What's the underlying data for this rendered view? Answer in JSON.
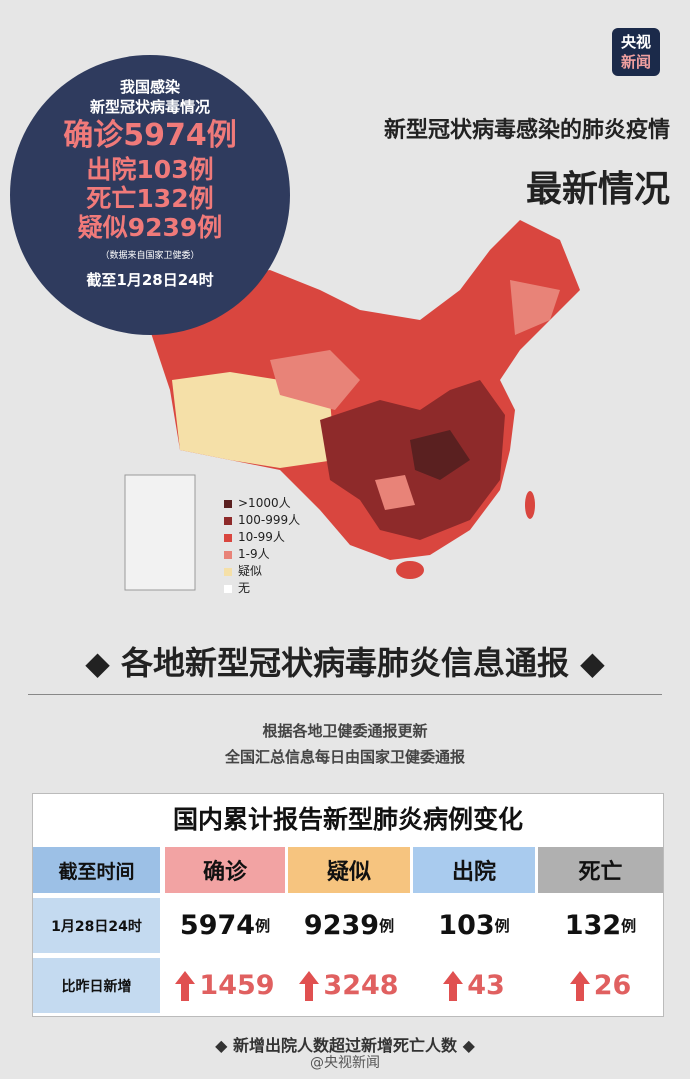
{
  "logo": [
    "央视",
    "新闻"
  ],
  "circle": {
    "title": [
      "我国感染",
      "新型冠状病毒情况"
    ],
    "confirmed": "确诊5974例",
    "discharged": "出院103例",
    "deaths": "死亡132例",
    "suspected": "疑似9239例",
    "source": "（数据来自国家卫健委）",
    "as_of": "截至1月28日24时"
  },
  "headline": [
    "新型冠状病毒感染的肺炎疫情",
    "最新情况"
  ],
  "legend": [
    {
      "label": ">1000人",
      "color": "#5a2020"
    },
    {
      "label": "100-999人",
      "color": "#8e2a2a"
    },
    {
      "label": "10-99人",
      "color": "#d9463f"
    },
    {
      "label": "1-9人",
      "color": "#e88378"
    },
    {
      "label": "疑似",
      "color": "#f5e0a8"
    },
    {
      "label": "无",
      "color": "#ffffff"
    }
  ],
  "section_title": "各地新型冠状病毒肺炎信息通报",
  "notes": [
    "根据各地卫健委通报更新",
    "全国汇总信息每日由国家卫健委通报"
  ],
  "table": {
    "title": "国内累计报告新型肺炎病例变化",
    "unit": "例",
    "header": [
      "截至时间",
      "确诊",
      "疑似",
      "出院",
      "死亡"
    ],
    "rows": [
      [
        "1月28日24时",
        5974,
        9239,
        103,
        132
      ],
      [
        "比昨日新增",
        1459,
        3248,
        43,
        26
      ]
    ]
  },
  "footer": "新增出院人数超过新增死亡人数",
  "watermark": "@央视新闻"
}
